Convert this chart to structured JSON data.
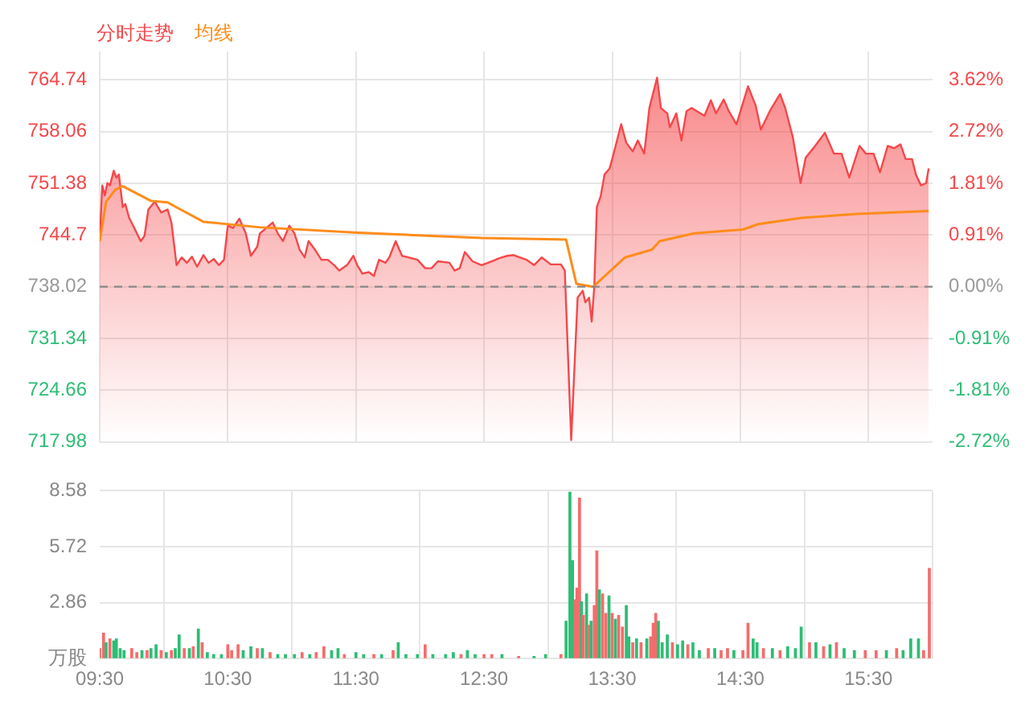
{
  "chart_data": [
    {
      "type": "area",
      "legend": "top left",
      "grid": true,
      "tick_labels": "y",
      "marker": "none",
      "xlim": [
        9.5,
        16.0
      ],
      "xticks": [
        {
          "value": 9.5,
          "label": null
        },
        {
          "value": 10.5,
          "label": null
        },
        {
          "value": 11.5,
          "label": null
        },
        {
          "value": 12.5,
          "label": null
        },
        {
          "value": 13.5,
          "label": null
        },
        {
          "value": 14.5,
          "label": null
        },
        {
          "value": 15.5,
          "label": null
        }
      ],
      "ylim": [
        717.98,
        768.4
      ],
      "yticks": [
        717.98,
        724.66,
        731.34,
        738.02,
        744.7,
        751.38,
        758.06,
        764.74
      ],
      "y2lim": [
        -2.72,
        4.12
      ],
      "y2ticks": [
        {
          "value": -2.72,
          "label": "-2.72%"
        },
        {
          "value": -1.81,
          "label": "-1.81%"
        },
        {
          "value": -0.91,
          "label": "-0.91%"
        },
        {
          "value": 0,
          "label": "0.00%"
        },
        {
          "value": 0.91,
          "label": "0.91%"
        },
        {
          "value": 1.81,
          "label": "1.81%"
        },
        {
          "value": 2.72,
          "label": "2.72%"
        },
        {
          "value": 3.62,
          "label": "3.62%"
        }
      ],
      "ref_lines": [
        {
          "axis": "y",
          "value": 738.02,
          "color": "#888888",
          "line_style": "dashed"
        }
      ],
      "series": [
        {
          "name": "分时走势",
          "color": "#f5474a",
          "x": [
            9.5,
            9.52,
            9.54,
            9.56,
            9.58,
            9.61,
            9.63,
            9.65,
            9.68,
            9.7,
            9.73,
            9.77,
            9.82,
            9.85,
            9.88,
            9.93,
            9.98,
            10.03,
            10.06,
            10.1,
            10.14,
            10.18,
            10.22,
            10.26,
            10.31,
            10.35,
            10.39,
            10.43,
            10.47,
            10.5,
            10.54,
            10.59,
            10.64,
            10.68,
            10.73,
            10.75,
            10.8,
            10.85,
            10.89,
            10.93,
            10.98,
            11.02,
            11.06,
            11.1,
            11.13,
            11.18,
            11.23,
            11.28,
            11.33,
            11.37,
            11.43,
            11.48,
            11.51,
            11.55,
            11.6,
            11.64,
            11.68,
            11.73,
            11.76,
            11.81,
            11.86,
            11.91,
            11.98,
            12.04,
            12.09,
            12.14,
            12.23,
            12.27,
            12.31,
            12.35,
            12.41,
            12.48,
            12.56,
            12.62,
            12.68,
            12.73,
            12.83,
            12.89,
            12.95,
            13.02,
            13.1,
            13.13,
            13.18,
            13.2,
            13.23,
            13.27,
            13.29,
            13.32,
            13.34,
            13.36,
            13.38,
            13.41,
            13.44,
            13.48,
            13.5,
            13.57,
            13.61,
            13.66,
            13.7,
            13.75,
            13.79,
            13.85,
            13.88,
            13.93,
            13.95,
            14.0,
            14.04,
            14.08,
            14.12,
            14.16,
            14.22,
            14.27,
            14.31,
            14.37,
            14.41,
            14.47,
            14.56,
            14.62,
            14.66,
            14.73,
            14.81,
            14.85,
            14.91,
            14.97,
            15.01,
            15.07,
            15.16,
            15.23,
            15.29,
            15.35,
            15.43,
            15.48,
            15.54,
            15.59,
            15.65,
            15.7,
            15.75,
            15.79,
            15.84,
            15.87,
            15.91,
            15.95,
            15.97
          ],
          "values": [
            743.9,
            751.1,
            749.8,
            751.4,
            751.1,
            753.0,
            752.1,
            752.5,
            748.3,
            748.7,
            746.9,
            745.6,
            743.9,
            744.6,
            748.0,
            749.0,
            747.6,
            748.0,
            746.3,
            740.8,
            741.8,
            741.1,
            741.9,
            740.6,
            742.1,
            741.1,
            741.6,
            740.8,
            741.5,
            745.9,
            745.6,
            746.8,
            744.9,
            742.0,
            743.2,
            744.9,
            745.6,
            746.3,
            744.9,
            743.9,
            745.9,
            744.9,
            742.8,
            741.8,
            743.9,
            742.8,
            741.5,
            741.5,
            740.8,
            740.1,
            740.8,
            742.0,
            740.8,
            739.7,
            739.9,
            739.4,
            741.5,
            741.1,
            741.8,
            743.9,
            742.0,
            741.8,
            741.5,
            740.4,
            740.4,
            741.3,
            741.1,
            740.1,
            740.4,
            742.5,
            741.3,
            740.8,
            741.3,
            741.7,
            742.0,
            742.1,
            741.5,
            740.8,
            741.8,
            740.9,
            740.9,
            740.1,
            718.2,
            725.6,
            736.6,
            737.5,
            736.0,
            736.6,
            733.5,
            738.0,
            748.3,
            749.7,
            752.5,
            753.3,
            754.5,
            759.0,
            756.6,
            755.5,
            756.9,
            755.2,
            761.1,
            765.0,
            761.1,
            760.4,
            758.6,
            760.4,
            756.9,
            760.7,
            761.1,
            760.7,
            760.1,
            762.1,
            760.4,
            762.2,
            760.7,
            759.0,
            763.9,
            761.4,
            758.3,
            760.7,
            762.9,
            761.1,
            757.3,
            751.4,
            754.7,
            755.9,
            757.9,
            755.2,
            755.2,
            752.1,
            756.2,
            755.2,
            755.2,
            752.8,
            756.2,
            755.9,
            756.4,
            754.5,
            754.5,
            752.5,
            751.1,
            751.4,
            753.3
          ]
        },
        {
          "name": "均线",
          "type": "line",
          "color": "#ff8c1a",
          "x": [
            9.5,
            9.55,
            9.62,
            9.68,
            9.9,
            10.03,
            10.13,
            10.31,
            10.74,
            11.49,
            12.48,
            13.14,
            13.22,
            13.35,
            13.6,
            13.81,
            13.87,
            14.14,
            14.52,
            14.64,
            14.98,
            15.39,
            15.97
          ],
          "values": [
            743.9,
            749.0,
            750.5,
            751.0,
            749.1,
            748.9,
            748.0,
            746.4,
            745.7,
            745.0,
            744.3,
            744.1,
            738.4,
            738.0,
            741.8,
            742.8,
            743.9,
            744.9,
            745.4,
            746.1,
            746.9,
            747.4,
            747.8
          ]
        }
      ]
    },
    {
      "type": "bar",
      "grid": true,
      "xlim": [
        9.5,
        16.0
      ],
      "xticks": [
        {
          "value": 9.5,
          "label": "09:30"
        },
        {
          "value": 10.5,
          "label": "10:30"
        },
        {
          "value": 11.5,
          "label": "11:30"
        },
        {
          "value": 12.5,
          "label": "12:30"
        },
        {
          "value": 13.5,
          "label": "13:30"
        },
        {
          "value": 14.5,
          "label": "14:30"
        },
        {
          "value": 15.5,
          "label": "15:30"
        }
      ],
      "ylim": [
        0,
        8.58
      ],
      "yticks": [
        {
          "value": 0,
          "label": "万股"
        },
        2.86,
        5.72,
        8.58
      ],
      "x": [
        9.5,
        9.53,
        9.55,
        9.58,
        9.61,
        9.63,
        9.66,
        9.69,
        9.75,
        9.79,
        9.83,
        9.87,
        9.9,
        9.94,
        9.98,
        10.02,
        10.06,
        10.09,
        10.12,
        10.16,
        10.2,
        10.23,
        10.27,
        10.3,
        10.34,
        10.39,
        10.45,
        10.5,
        10.53,
        10.58,
        10.62,
        10.68,
        10.73,
        10.77,
        10.83,
        10.89,
        10.95,
        11.02,
        11.08,
        11.14,
        11.19,
        11.25,
        11.31,
        11.36,
        11.41,
        11.5,
        11.56,
        11.64,
        11.7,
        11.79,
        11.83,
        11.89,
        11.98,
        12.04,
        12.1,
        12.2,
        12.26,
        12.32,
        12.37,
        12.43,
        12.5,
        12.56,
        12.64,
        12.77,
        12.89,
        12.98,
        13.1,
        13.14,
        13.17,
        13.19,
        13.21,
        13.225,
        13.245,
        13.26,
        13.275,
        13.3,
        13.315,
        13.335,
        13.36,
        13.38,
        13.4,
        13.425,
        13.45,
        13.475,
        13.5,
        13.525,
        13.55,
        13.58,
        13.61,
        13.63,
        13.66,
        13.69,
        13.725,
        13.77,
        13.8,
        13.82,
        13.84,
        13.86,
        13.89,
        13.93,
        13.97,
        14.01,
        14.05,
        14.09,
        14.13,
        14.18,
        14.25,
        14.3,
        14.35,
        14.4,
        14.45,
        14.52,
        14.56,
        14.6,
        14.63,
        14.68,
        14.75,
        14.81,
        14.87,
        14.93,
        14.975,
        15.04,
        15.09,
        15.15,
        15.2,
        15.25,
        15.31,
        15.39,
        15.475,
        15.56,
        15.64,
        15.72,
        15.77,
        15.83,
        15.89,
        15.93,
        15.975
      ],
      "values": [
        0.5,
        1.3,
        0.8,
        1.0,
        0.9,
        1.0,
        0.5,
        0.4,
        0.5,
        0.3,
        0.4,
        0.4,
        0.5,
        0.7,
        0.4,
        0.3,
        0.4,
        0.5,
        1.2,
        0.5,
        0.5,
        0.6,
        1.5,
        0.8,
        0.3,
        0.2,
        0.2,
        0.7,
        0.4,
        0.7,
        0.4,
        0.6,
        0.5,
        0.5,
        0.3,
        0.2,
        0.2,
        0.2,
        0.3,
        0.2,
        0.3,
        0.6,
        0.4,
        0.5,
        0.2,
        0.3,
        0.2,
        0.2,
        0.2,
        0.4,
        0.8,
        0.2,
        0.2,
        0.7,
        0.2,
        0.2,
        0.3,
        0.2,
        0.4,
        0.2,
        0.2,
        0.2,
        0.2,
        0.1,
        0.1,
        0.2,
        0.2,
        1.9,
        8.5,
        5.0,
        3.0,
        3.6,
        8.2,
        2.9,
        2.2,
        3.3,
        1.7,
        1.9,
        2.7,
        5.5,
        3.5,
        3.3,
        2.3,
        3.2,
        2.3,
        2.0,
        2.2,
        1.6,
        2.7,
        1.1,
        0.8,
        1.0,
        0.8,
        1.0,
        1.1,
        1.8,
        2.3,
        1.9,
        0.8,
        1.2,
        0.8,
        0.7,
        0.9,
        0.7,
        0.8,
        0.4,
        0.5,
        0.5,
        0.4,
        0.5,
        0.4,
        0.4,
        1.8,
        1.0,
        0.8,
        0.5,
        0.5,
        0.4,
        0.6,
        0.5,
        1.6,
        0.8,
        0.8,
        0.6,
        0.7,
        0.8,
        0.5,
        0.4,
        0.4,
        0.4,
        0.4,
        0.5,
        0.4,
        1.0,
        1.0,
        0.4,
        4.6
      ],
      "colors": [
        "#f56c6c",
        "#f56c6c",
        "#2dbd74",
        "#f56c6c",
        "#2dbd74",
        "#2dbd74",
        "#2dbd74",
        "#2dbd74",
        "#f56c6c",
        "#f56c6c",
        "#2dbd74",
        "#f56c6c",
        "#2dbd74",
        "#2dbd74",
        "#f56c6c",
        "#2dbd74",
        "#f56c6c",
        "#2dbd74",
        "#2dbd74",
        "#f56c6c",
        "#2dbd74",
        "#f56c6c",
        "#2dbd74",
        "#f56c6c",
        "#2dbd74",
        "#2dbd74",
        "#2dbd74",
        "#f56c6c",
        "#f56c6c",
        "#f56c6c",
        "#2dbd74",
        "#2dbd74",
        "#f56c6c",
        "#2dbd74",
        "#f56c6c",
        "#2dbd74",
        "#2dbd74",
        "#2dbd74",
        "#f56c6c",
        "#2dbd74",
        "#f56c6c",
        "#f56c6c",
        "#2dbd74",
        "#2dbd74",
        "#f56c6c",
        "#2dbd74",
        "#2dbd74",
        "#f56c6c",
        "#2dbd74",
        "#f56c6c",
        "#2dbd74",
        "#2dbd74",
        "#2dbd74",
        "#f56c6c",
        "#2dbd74",
        "#2dbd74",
        "#2dbd74",
        "#f56c6c",
        "#2dbd74",
        "#2dbd74",
        "#f56c6c",
        "#f56c6c",
        "#2dbd74",
        "#f56c6c",
        "#2dbd74",
        "#2dbd74",
        "#f56c6c",
        "#2dbd74",
        "#2dbd74",
        "#2dbd74",
        "#f56c6c",
        "#f56c6c",
        "#f56c6c",
        "#2dbd74",
        "#f56c6c",
        "#2dbd74",
        "#f56c6c",
        "#2dbd74",
        "#f56c6c",
        "#f56c6c",
        "#2dbd74",
        "#f56c6c",
        "#f56c6c",
        "#2dbd74",
        "#f56c6c",
        "#2dbd74",
        "#f56c6c",
        "#f56c6c",
        "#2dbd74",
        "#2dbd74",
        "#f56c6c",
        "#2dbd74",
        "#f56c6c",
        "#2dbd74",
        "#f56c6c",
        "#f56c6c",
        "#f56c6c",
        "#2dbd74",
        "#2dbd74",
        "#2dbd74",
        "#f56c6c",
        "#2dbd74",
        "#2dbd74",
        "#f56c6c",
        "#2dbd74",
        "#2dbd74",
        "#f56c6c",
        "#2dbd74",
        "#f56c6c",
        "#f56c6c",
        "#2dbd74",
        "#f56c6c",
        "#f56c6c",
        "#2dbd74",
        "#2dbd74",
        "#f56c6c",
        "#2dbd74",
        "#f56c6c",
        "#2dbd74",
        "#2dbd74",
        "#2dbd74",
        "#f56c6c",
        "#2dbd74",
        "#f56c6c",
        "#2dbd74",
        "#f56c6c",
        "#2dbd74",
        "#2dbd74",
        "#f56c6c",
        "#f56c6c",
        "#2dbd74",
        "#f56c6c",
        "#2dbd74",
        "#2dbd74",
        "#2dbd74",
        "#f56c6c",
        "#f56c6c"
      ]
    }
  ]
}
